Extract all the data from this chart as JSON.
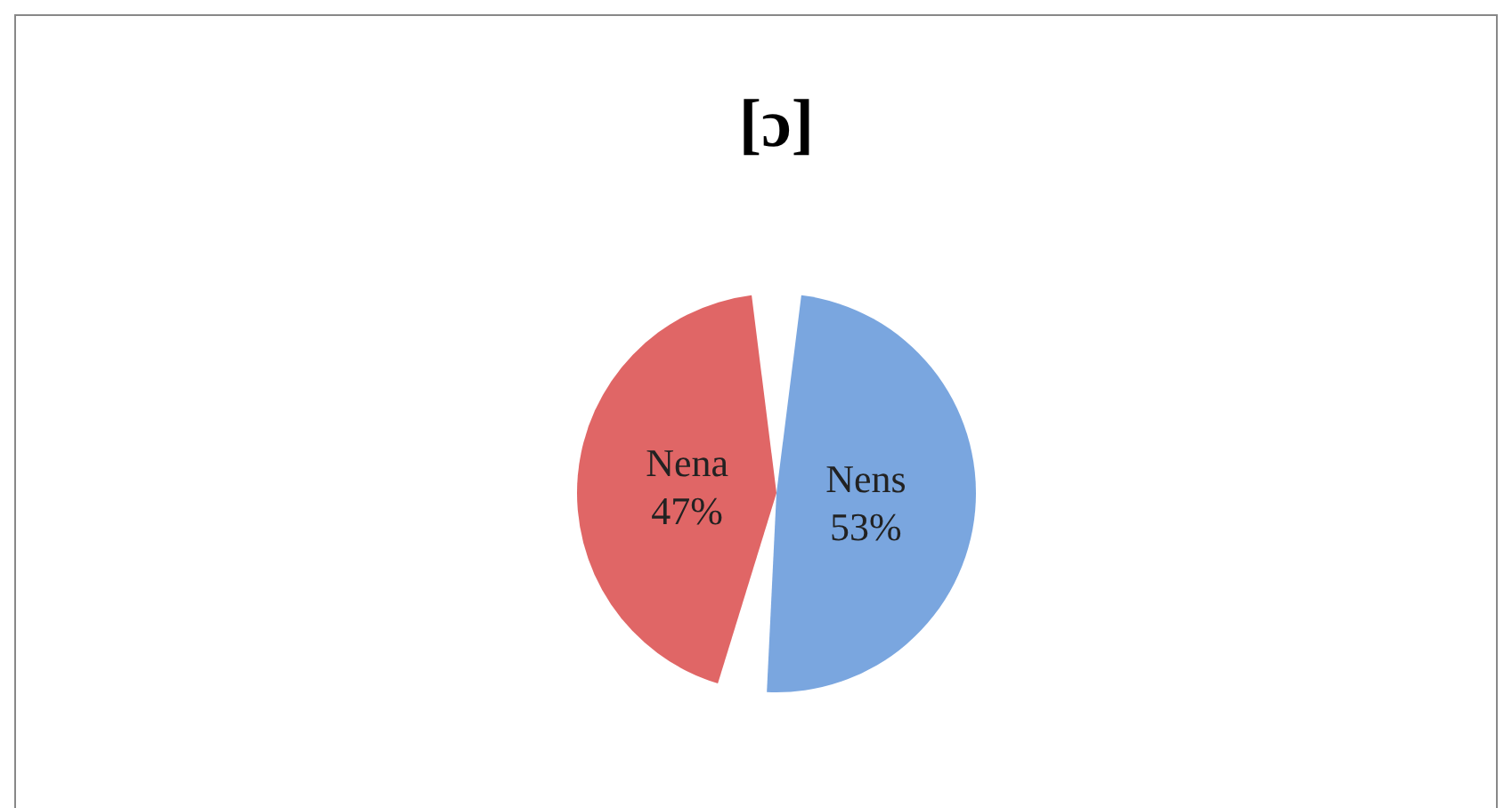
{
  "chart_data": {
    "type": "pie",
    "title": "[ɔ]",
    "categories": [
      "Nens",
      "Nena"
    ],
    "values": [
      53,
      47
    ],
    "colors": [
      "#7aa6df",
      "#e06666"
    ],
    "value_labels": [
      "53%",
      "47%"
    ]
  }
}
